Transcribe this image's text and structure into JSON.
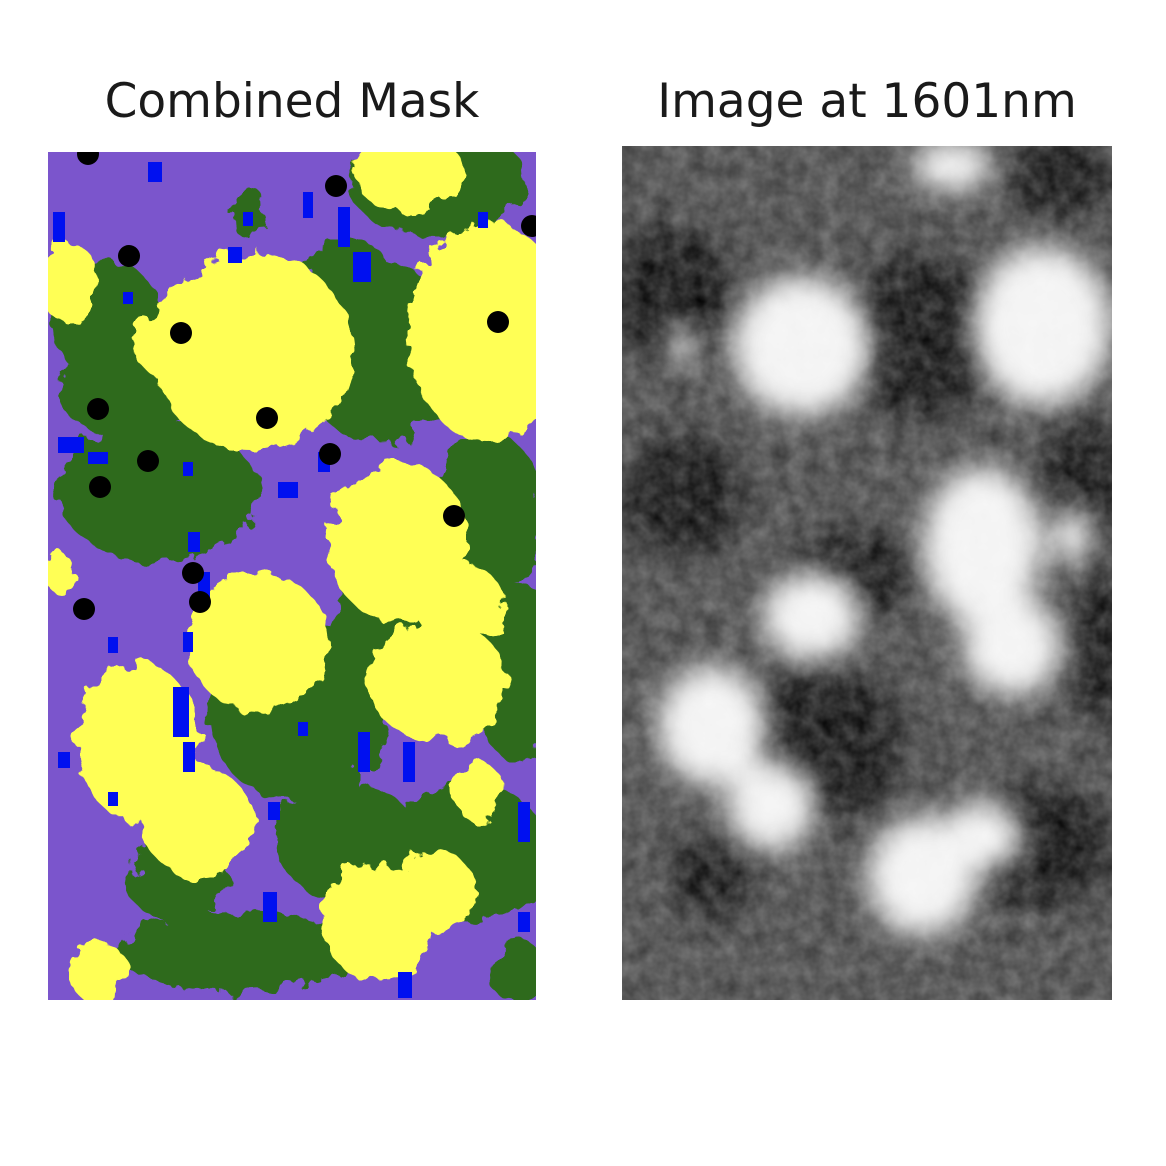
{
  "panels": {
    "left": {
      "title": "Combined Mask",
      "colors": {
        "background": "#7b55cc",
        "green": "#2e6b1e",
        "yellow": "#ffff55",
        "blue": "#0010f0",
        "black": "#000000"
      }
    },
    "right": {
      "title": "Image at 1601nm",
      "colors": {
        "dark": "#111111",
        "mid": "#3a3a3a",
        "bright": "#f2f2f2"
      }
    }
  }
}
